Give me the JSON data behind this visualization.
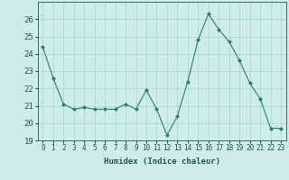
{
  "x": [
    0,
    1,
    2,
    3,
    4,
    5,
    6,
    7,
    8,
    9,
    10,
    11,
    12,
    13,
    14,
    15,
    16,
    17,
    18,
    19,
    20,
    21,
    22,
    23
  ],
  "y": [
    24.4,
    22.6,
    21.1,
    20.8,
    20.9,
    20.8,
    20.8,
    20.8,
    21.1,
    20.8,
    21.9,
    20.8,
    19.3,
    20.4,
    22.4,
    24.8,
    26.3,
    25.4,
    24.7,
    23.6,
    22.3,
    21.4,
    19.7,
    19.7
  ],
  "line_color": "#2e7d6e",
  "marker": "D",
  "marker_size": 2,
  "bg_color": "#ceecea",
  "grid_color": "#aed8d4",
  "xlabel": "Humidex (Indice chaleur)",
  "ylim": [
    19,
    27
  ],
  "xlim": [
    -0.5,
    23.5
  ],
  "yticks": [
    19,
    20,
    21,
    22,
    23,
    24,
    25,
    26
  ],
  "xticks": [
    0,
    1,
    2,
    3,
    4,
    5,
    6,
    7,
    8,
    9,
    10,
    11,
    12,
    13,
    14,
    15,
    16,
    17,
    18,
    19,
    20,
    21,
    22,
    23
  ],
  "xlabel_fontsize": 6.5,
  "ytick_fontsize": 6.5,
  "xtick_fontsize": 5.5,
  "text_color": "#2a5050"
}
